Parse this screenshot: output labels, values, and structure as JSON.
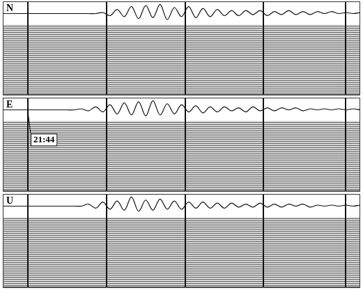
{
  "chart_data": [
    {
      "type": "line",
      "title": "N",
      "x": [
        0,
        2,
        4,
        6,
        8,
        10,
        12,
        14,
        16,
        18,
        20,
        22,
        24,
        26,
        28,
        30,
        32,
        34,
        36,
        38,
        40,
        42,
        44,
        46,
        48,
        50,
        52,
        54,
        56,
        58,
        60,
        62,
        64,
        66,
        68,
        70,
        72,
        74,
        76,
        78,
        80,
        82,
        84,
        86,
        88,
        90,
        92,
        94,
        96,
        98,
        100
      ],
      "values": [
        0,
        0,
        0,
        0,
        0,
        0,
        0,
        0,
        0,
        0,
        0,
        0,
        0,
        0,
        1,
        -2,
        4,
        -3,
        7,
        -5,
        8,
        -4,
        9,
        -6,
        6,
        -3,
        7,
        -4,
        5,
        -3,
        4,
        -2,
        3,
        -2,
        3,
        -1,
        3,
        -2,
        2,
        -1,
        3,
        -1,
        2,
        -1,
        2,
        0,
        2,
        0,
        1,
        0,
        1
      ],
      "color": "#111111",
      "xlim": [
        0,
        100
      ],
      "ylim": [
        -80,
        12
      ],
      "xticks": [
        7,
        29,
        51,
        73,
        96
      ],
      "grid": true,
      "tick_labels": false
    },
    {
      "type": "line",
      "title": "E",
      "x": [
        0,
        2,
        4,
        6,
        8,
        10,
        12,
        14,
        16,
        18,
        20,
        22,
        24,
        26,
        28,
        30,
        32,
        34,
        36,
        38,
        40,
        42,
        44,
        46,
        48,
        50,
        52,
        54,
        56,
        58,
        60,
        62,
        64,
        66,
        68,
        70,
        72,
        74,
        76,
        78,
        80,
        82,
        84,
        86,
        88,
        90,
        92,
        94,
        96,
        98,
        100
      ],
      "values": [
        0,
        0,
        0,
        0,
        0,
        0,
        0,
        0,
        0,
        0,
        0,
        1,
        -1,
        3,
        -2,
        5,
        -4,
        7,
        -5,
        8,
        -6,
        9,
        -5,
        6,
        -4,
        5,
        -2,
        4,
        -3,
        3,
        -2,
        3,
        -1,
        2,
        -2,
        3,
        -1,
        2,
        -1,
        2,
        0,
        2,
        -1,
        1,
        0,
        1,
        0,
        1,
        0,
        1,
        0
      ],
      "color": "#111111",
      "xlim": [
        0,
        100
      ],
      "ylim": [
        -80,
        12
      ],
      "xticks": [
        7,
        29,
        51,
        73,
        96
      ],
      "grid": true,
      "tick_labels": false,
      "annotations": [
        "21:44"
      ]
    },
    {
      "type": "line",
      "title": "U",
      "x": [
        0,
        2,
        4,
        6,
        8,
        10,
        12,
        14,
        16,
        18,
        20,
        22,
        24,
        26,
        28,
        30,
        32,
        34,
        36,
        38,
        40,
        42,
        44,
        46,
        48,
        50,
        52,
        54,
        56,
        58,
        60,
        62,
        64,
        66,
        68,
        70,
        72,
        74,
        76,
        78,
        80,
        82,
        84,
        86,
        88,
        90,
        92,
        94,
        96,
        98,
        100
      ],
      "values": [
        0,
        0,
        0,
        0,
        0,
        0,
        0,
        0,
        0,
        0,
        0,
        0,
        2,
        -2,
        4,
        -3,
        5,
        -4,
        9,
        -5,
        6,
        -4,
        7,
        -3,
        5,
        -3,
        4,
        -2,
        4,
        -2,
        3,
        -2,
        3,
        -1,
        2,
        -1,
        3,
        -1,
        2,
        -1,
        2,
        0,
        2,
        -1,
        1,
        0,
        1,
        0,
        1,
        0,
        1
      ],
      "color": "#111111",
      "xlim": [
        0,
        100
      ],
      "ylim": [
        -80,
        12
      ],
      "xticks": [
        7,
        29,
        51,
        73,
        96
      ],
      "grid": true,
      "tick_labels": false
    }
  ]
}
